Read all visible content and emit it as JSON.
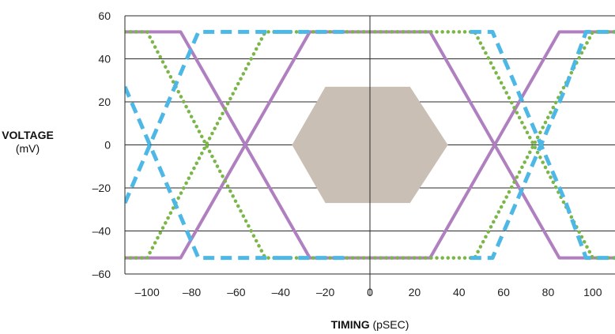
{
  "chart_data": {
    "type": "line",
    "title": "",
    "xlabel": {
      "bold": "TIMING",
      "unit": "(pSEC)"
    },
    "ylabel": {
      "bold": "VOLTAGE",
      "unit": "(mV)"
    },
    "xlim": [
      -110,
      110
    ],
    "ylim": [
      -60,
      60
    ],
    "x_ticks": [
      -100,
      -80,
      -60,
      -40,
      -20,
      0,
      20,
      40,
      60,
      80,
      100
    ],
    "x_tick_labels": [
      "–100",
      "–80",
      "–60",
      "–40",
      "–20",
      "0",
      "20",
      "40",
      "60",
      "80",
      "100"
    ],
    "y_ticks": [
      60,
      40,
      20,
      0,
      -20,
      -40,
      -60
    ],
    "y_tick_labels": [
      "60",
      "40",
      "20",
      "0",
      "–20",
      "–40",
      "–60"
    ],
    "grid": "horizontal",
    "series": [
      {
        "style": "solid",
        "color": "#b07fc0",
        "segments": [
          [
            [
              -110,
              52.5
            ],
            [
              -85,
              52.5
            ],
            [
              -27,
              -52.5
            ],
            [
              27,
              -52.5
            ],
            [
              85,
              52.5
            ],
            [
              110,
              52.5
            ]
          ],
          [
            [
              -110,
              -52.5
            ],
            [
              -85,
              -52.5
            ],
            [
              -27,
              52.5
            ],
            [
              27,
              52.5
            ],
            [
              85,
              -52.5
            ],
            [
              110,
              -52.5
            ]
          ]
        ]
      },
      {
        "style": "dotted",
        "color": "#7ab648",
        "segments": [
          [
            [
              -110,
              52.5
            ],
            [
              -100,
              52.5
            ],
            [
              -47,
              -52.5
            ],
            [
              47,
              -52.5
            ],
            [
              100,
              52.5
            ],
            [
              110,
              52.5
            ]
          ],
          [
            [
              -110,
              -52.5
            ],
            [
              -100,
              -52.5
            ],
            [
              -47,
              52.5
            ],
            [
              47,
              52.5
            ],
            [
              100,
              -52.5
            ],
            [
              110,
              -52.5
            ]
          ]
        ]
      },
      {
        "style": "dashed",
        "color": "#4db8e6",
        "segments": [
          [
            [
              -110,
              27
            ],
            [
              -77,
              -52.5
            ],
            [
              -40,
              -52.5
            ],
            [
              -40,
              -52.5
            ]
          ],
          [
            [
              -110,
              -27
            ],
            [
              -77,
              52.5
            ],
            [
              -40,
              52.5
            ]
          ],
          [
            [
              -40,
              52.5
            ],
            [
              -10,
              52.5
            ]
          ],
          [
            [
              -40,
              -52.5
            ],
            [
              -10,
              -52.5
            ]
          ],
          [
            [
              45,
              52.5
            ],
            [
              55,
              52.5
            ],
            [
              88,
              -27
            ],
            [
              97,
              -52.5
            ],
            [
              110,
              -52.5
            ]
          ],
          [
            [
              45,
              -52.5
            ],
            [
              55,
              -52.5
            ],
            [
              88,
              27
            ],
            [
              97,
              52.5
            ],
            [
              110,
              52.5
            ]
          ]
        ]
      }
    ],
    "mask": {
      "shape": "hexagon",
      "color": "#c9bfb4",
      "points": [
        [
          -35,
          0
        ],
        [
          -20,
          27
        ],
        [
          18,
          27
        ],
        [
          35,
          0
        ],
        [
          18,
          -27
        ],
        [
          -20,
          -27
        ]
      ]
    }
  }
}
